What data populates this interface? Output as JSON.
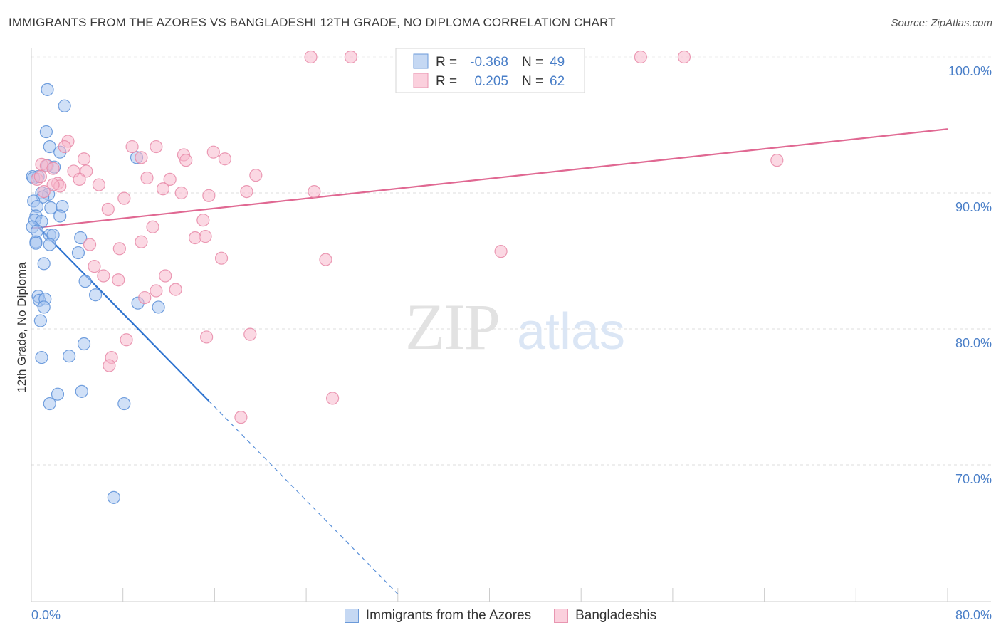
{
  "header": {
    "title": "IMMIGRANTS FROM THE AZORES VS BANGLADESHI 12TH GRADE, NO DIPLOMA CORRELATION CHART",
    "source": "Source: ZipAtlas.com"
  },
  "watermark": {
    "zip": "ZIP",
    "atlas": "atlas"
  },
  "colors": {
    "blue_fill": "#a9c7f0",
    "blue_stroke": "#5b8fd8",
    "blue_line": "#2f74d0",
    "pink_fill": "#f7b8cc",
    "pink_stroke": "#e78aa8",
    "pink_line": "#e06892",
    "axis_text": "#4a7fc8",
    "grid": "#dddddd"
  },
  "chart_data": {
    "type": "scatter",
    "title": "IMMIGRANTS FROM THE AZORES VS BANGLADESHI 12TH GRADE, NO DIPLOMA CORRELATION CHART",
    "ylabel": "12th Grade, No Diploma",
    "xlabel": "",
    "xlim": [
      0,
      80
    ],
    "ylim": [
      60.5,
      101.5
    ],
    "x_tick_labels": [
      {
        "value": 0,
        "label": "0.0%"
      },
      {
        "value": 80,
        "label": "80.0%"
      }
    ],
    "y_tick_labels": [
      {
        "value": 100,
        "label": "100.0%"
      },
      {
        "value": 90,
        "label": "90.0%"
      },
      {
        "value": 80,
        "label": "80.0%"
      },
      {
        "value": 70,
        "label": "70.0%"
      }
    ],
    "x_minor_ticks": [
      0,
      8,
      16,
      24,
      32,
      40,
      48,
      56,
      64,
      72,
      80
    ],
    "legend": [
      {
        "series": "Immigrants from the Azores",
        "r_label": "R =",
        "r": "-0.368",
        "n_label": "N =",
        "n": "49"
      },
      {
        "series": "Bangladeshis",
        "r_label": "R =",
        "r": "0.205",
        "n_label": "N =",
        "n": "62"
      }
    ],
    "series": [
      {
        "name": "Immigrants from the Azores",
        "color": "blue",
        "points": [
          [
            1.4,
            97.6
          ],
          [
            2.9,
            96.4
          ],
          [
            1.3,
            94.5
          ],
          [
            1.6,
            93.4
          ],
          [
            2.5,
            93.0
          ],
          [
            9.2,
            92.6
          ],
          [
            1.4,
            92.0
          ],
          [
            2.0,
            91.9
          ],
          [
            0.1,
            91.2
          ],
          [
            0.6,
            91.2
          ],
          [
            0.2,
            91.1
          ],
          [
            0.9,
            90.0
          ],
          [
            1.5,
            89.9
          ],
          [
            1.0,
            89.7
          ],
          [
            0.2,
            89.4
          ],
          [
            0.5,
            89.0
          ],
          [
            2.7,
            89.0
          ],
          [
            1.7,
            88.9
          ],
          [
            0.4,
            88.3
          ],
          [
            2.5,
            88.3
          ],
          [
            0.3,
            88.0
          ],
          [
            0.9,
            87.9
          ],
          [
            0.1,
            87.5
          ],
          [
            0.5,
            87.2
          ],
          [
            1.6,
            86.9
          ],
          [
            1.9,
            86.9
          ],
          [
            4.3,
            86.7
          ],
          [
            1.6,
            86.2
          ],
          [
            0.4,
            86.4
          ],
          [
            0.4,
            86.3
          ],
          [
            4.1,
            85.6
          ],
          [
            1.1,
            84.8
          ],
          [
            4.7,
            83.5
          ],
          [
            5.6,
            82.5
          ],
          [
            0.6,
            82.4
          ],
          [
            0.7,
            82.1
          ],
          [
            1.2,
            82.2
          ],
          [
            1.1,
            81.6
          ],
          [
            9.3,
            81.9
          ],
          [
            11.1,
            81.6
          ],
          [
            0.8,
            80.6
          ],
          [
            4.6,
            78.9
          ],
          [
            0.9,
            77.9
          ],
          [
            3.3,
            78.0
          ],
          [
            2.3,
            75.2
          ],
          [
            4.4,
            75.4
          ],
          [
            1.6,
            74.5
          ],
          [
            8.1,
            74.5
          ],
          [
            7.2,
            67.6
          ]
        ]
      },
      {
        "name": "Bangladeshis",
        "color": "pink",
        "points": [
          [
            24.4,
            100.0
          ],
          [
            27.9,
            100.0
          ],
          [
            53.2,
            100.0
          ],
          [
            57.0,
            100.0
          ],
          [
            3.2,
            93.8
          ],
          [
            2.9,
            93.4
          ],
          [
            8.8,
            93.4
          ],
          [
            10.9,
            93.4
          ],
          [
            4.6,
            92.5
          ],
          [
            9.6,
            92.6
          ],
          [
            13.3,
            92.8
          ],
          [
            15.9,
            93.0
          ],
          [
            16.9,
            92.5
          ],
          [
            13.5,
            92.4
          ],
          [
            65.1,
            92.4
          ],
          [
            0.9,
            92.1
          ],
          [
            1.3,
            92.0
          ],
          [
            3.7,
            91.6
          ],
          [
            4.8,
            91.6
          ],
          [
            1.9,
            91.8
          ],
          [
            0.5,
            91.0
          ],
          [
            10.1,
            91.1
          ],
          [
            12.1,
            91.0
          ],
          [
            19.6,
            91.3
          ],
          [
            0.8,
            91.2
          ],
          [
            4.2,
            91.0
          ],
          [
            2.3,
            90.7
          ],
          [
            2.5,
            90.5
          ],
          [
            5.9,
            90.6
          ],
          [
            1.9,
            90.6
          ],
          [
            1.1,
            90.1
          ],
          [
            11.5,
            90.3
          ],
          [
            13.1,
            90.0
          ],
          [
            15.5,
            89.8
          ],
          [
            18.8,
            90.1
          ],
          [
            24.7,
            90.1
          ],
          [
            8.1,
            89.6
          ],
          [
            6.7,
            88.8
          ],
          [
            15.0,
            88.0
          ],
          [
            10.6,
            87.5
          ],
          [
            15.2,
            86.8
          ],
          [
            14.3,
            86.7
          ],
          [
            9.6,
            86.4
          ],
          [
            5.1,
            86.2
          ],
          [
            7.7,
            85.9
          ],
          [
            41.0,
            85.7
          ],
          [
            16.6,
            85.2
          ],
          [
            25.7,
            85.1
          ],
          [
            5.5,
            84.6
          ],
          [
            6.3,
            83.9
          ],
          [
            11.7,
            83.9
          ],
          [
            7.6,
            83.6
          ],
          [
            12.6,
            82.9
          ],
          [
            9.9,
            82.3
          ],
          [
            10.9,
            82.8
          ],
          [
            19.1,
            79.6
          ],
          [
            8.3,
            79.2
          ],
          [
            15.3,
            79.4
          ],
          [
            7.0,
            77.9
          ],
          [
            6.8,
            77.3
          ],
          [
            26.3,
            74.9
          ],
          [
            18.3,
            73.5
          ]
        ]
      }
    ],
    "trend_lines": [
      {
        "series": "Immigrants from the Azores",
        "from": [
          0,
          88.0
        ],
        "to": [
          15.5,
          74.7
        ],
        "dashed_to": [
          32.0,
          60.5
        ]
      },
      {
        "series": "Bangladeshis",
        "from": [
          0,
          87.4
        ],
        "to": [
          80,
          94.7
        ]
      }
    ]
  }
}
